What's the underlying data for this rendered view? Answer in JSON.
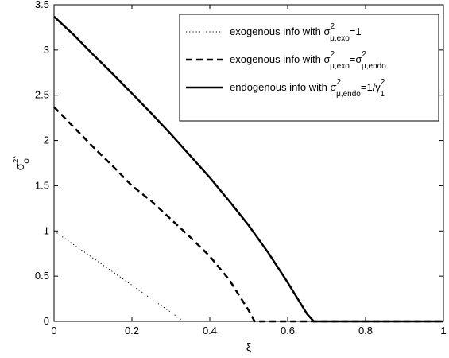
{
  "chart_data": {
    "type": "line",
    "title": "",
    "xlabel": "ξ",
    "ylabel": {
      "base": "σ",
      "sup": "2*",
      "sub": "φ"
    },
    "xlim": [
      0,
      1
    ],
    "ylim": [
      0,
      3.5
    ],
    "xticks": [
      "0",
      "0.2",
      "0.4",
      "0.6",
      "0.8",
      "1"
    ],
    "yticks": [
      "0",
      "0.5",
      "1",
      "1.5",
      "2",
      "2.5",
      "3",
      "3.5"
    ],
    "grid": false,
    "legend_position": "top-right",
    "series": [
      {
        "id": "exo1",
        "legend": [
          {
            "t": "exogenous info with σ"
          },
          {
            "t": "2",
            "sup": true
          },
          {
            "t": "μ,exo",
            "sub": true
          },
          {
            "t": "=1"
          }
        ],
        "style": "dotted",
        "x": [
          0,
          0.05,
          0.1,
          0.15,
          0.2,
          0.25,
          0.3,
          0.333,
          0.4,
          0.5,
          0.6,
          0.7,
          0.8,
          0.9,
          1.0
        ],
        "y": [
          1.0,
          0.85,
          0.7,
          0.55,
          0.4,
          0.25,
          0.1,
          0.0,
          0.0,
          0.0,
          0.0,
          0.0,
          0.0,
          0.0,
          0.0
        ]
      },
      {
        "id": "exo_endo",
        "legend": [
          {
            "t": "exogenous info with σ"
          },
          {
            "t": "2",
            "sup": true
          },
          {
            "t": "μ,exo",
            "sub": true
          },
          {
            "t": "=σ"
          },
          {
            "t": "2",
            "sup": true
          },
          {
            "t": "μ,endo",
            "sub": true
          }
        ],
        "style": "dashed",
        "x": [
          0,
          0.05,
          0.1,
          0.15,
          0.2,
          0.25,
          0.3,
          0.35,
          0.4,
          0.45,
          0.5,
          0.515,
          0.6,
          0.7,
          0.8,
          0.9,
          1.0
        ],
        "y": [
          2.37,
          2.15,
          1.93,
          1.72,
          1.5,
          1.33,
          1.13,
          0.93,
          0.72,
          0.46,
          0.12,
          0.0,
          0.0,
          0.0,
          0.0,
          0.0,
          0.0
        ],
        "y_end": 0
      },
      {
        "id": "endo",
        "legend": [
          {
            "t": "endogenous info with σ"
          },
          {
            "t": "2",
            "sup": true
          },
          {
            "t": "μ,endo",
            "sub": true
          },
          {
            "t": "=1/γ"
          },
          {
            "t": "2",
            "sup": true
          },
          {
            "t": "1",
            "sub": true
          }
        ],
        "style": "solid",
        "x": [
          0,
          0.05,
          0.1,
          0.15,
          0.2,
          0.25,
          0.3,
          0.35,
          0.4,
          0.45,
          0.5,
          0.55,
          0.6,
          0.65,
          0.667,
          0.7,
          0.8,
          0.9,
          1.0
        ],
        "y": [
          3.37,
          3.17,
          2.95,
          2.74,
          2.52,
          2.3,
          2.07,
          1.83,
          1.59,
          1.33,
          1.06,
          0.76,
          0.43,
          0.08,
          0.0,
          0.0,
          0.0,
          0.0,
          0.0
        ]
      }
    ]
  }
}
